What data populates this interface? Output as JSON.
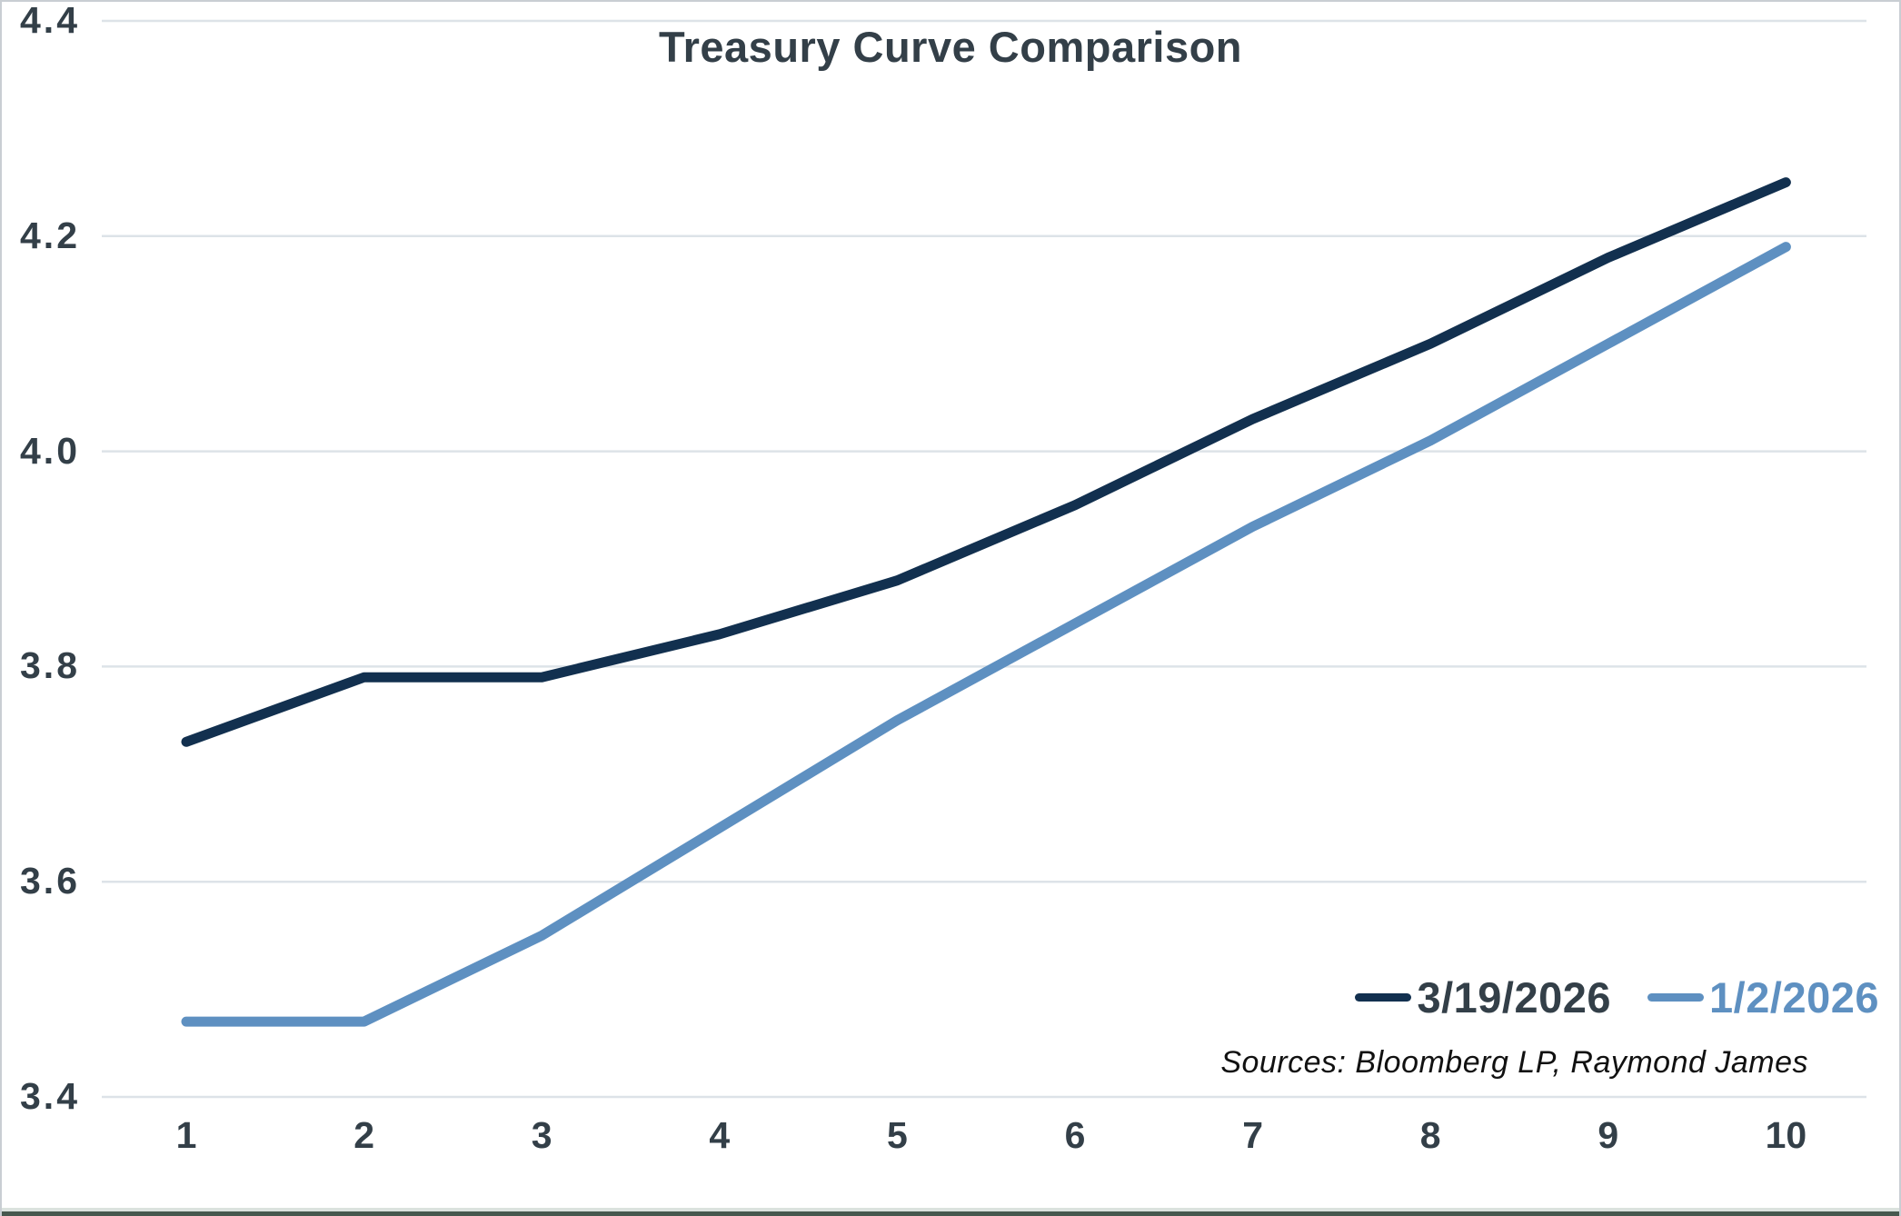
{
  "chart_data": {
    "type": "line",
    "title": "Treasury Curve Comparison",
    "x": [
      1,
      2,
      3,
      4,
      5,
      6,
      7,
      8,
      9,
      10
    ],
    "xlabel": "",
    "ylabel": "",
    "ylim": [
      3.4,
      4.4
    ],
    "yticks": [
      3.4,
      3.6,
      3.8,
      4.0,
      4.2,
      4.4
    ],
    "ytick_format_decimals": 1,
    "grid": "horizontal",
    "legend_position": "bottom-right",
    "series": [
      {
        "name": "3/19/2026",
        "color": "#12304f",
        "values": [
          3.73,
          3.79,
          3.79,
          3.83,
          3.88,
          3.95,
          4.03,
          4.1,
          4.18,
          4.25
        ]
      },
      {
        "name": "1/2/2026",
        "color": "#5e90c1",
        "values": [
          3.47,
          3.47,
          3.55,
          3.65,
          3.75,
          3.84,
          3.93,
          4.01,
          4.1,
          4.19
        ]
      }
    ],
    "source_note": "Sources: Bloomberg LP, Raymond James"
  },
  "colors": {
    "title_text": "#333f48",
    "axis_text": "#333f48",
    "gridline": "#dde3e8",
    "border": "#c9ced3",
    "bottom_bar": "#47584e",
    "background": "#ffffff",
    "source_text": "#111111"
  }
}
